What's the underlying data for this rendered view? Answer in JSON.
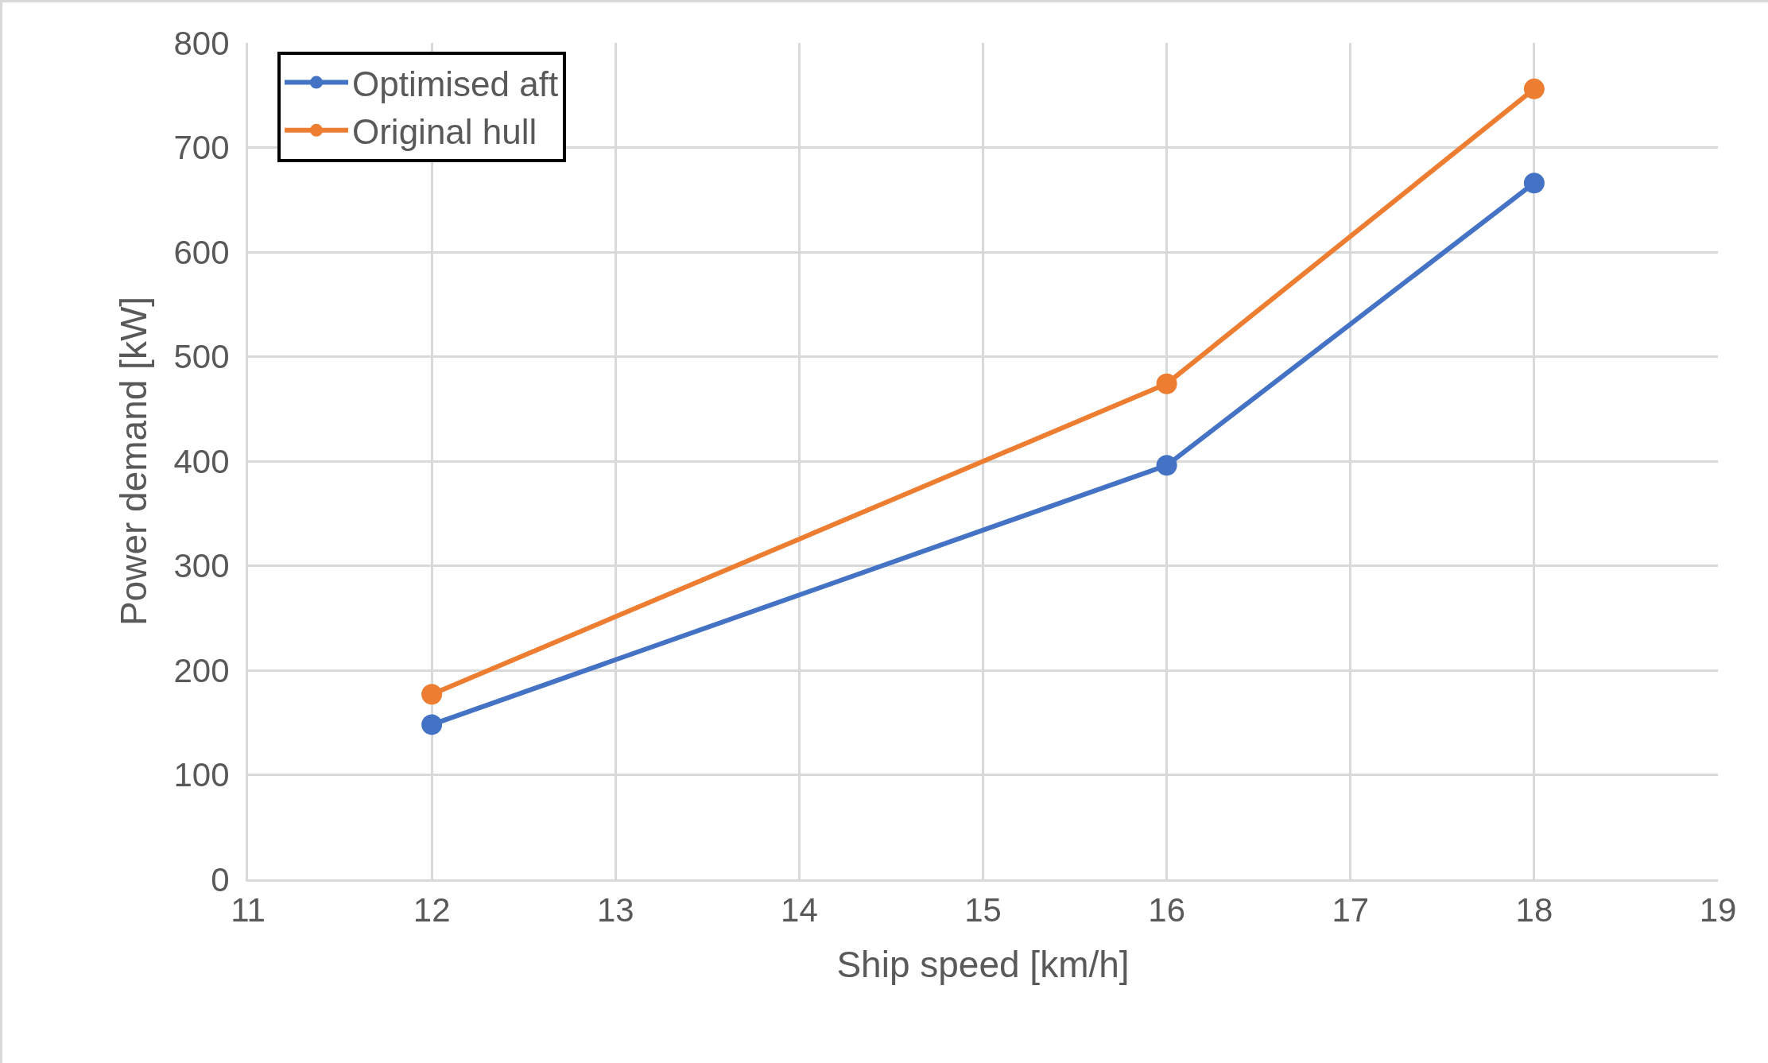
{
  "chart_data": {
    "type": "line",
    "xlabel": "Ship speed [km/h]",
    "ylabel": "Power demand [kW]",
    "x": [
      12,
      16,
      18
    ],
    "series": [
      {
        "name": "Optimised aft",
        "color": "#4472c4",
        "values": [
          148,
          396,
          666
        ]
      },
      {
        "name": "Original hull",
        "color": "#ed7d31",
        "values": [
          177,
          474,
          756
        ]
      }
    ],
    "xlim": [
      11,
      19
    ],
    "xticks": [
      11,
      12,
      13,
      14,
      15,
      16,
      17,
      18,
      19
    ],
    "ylim": [
      0,
      800
    ],
    "yticks": [
      0,
      100,
      200,
      300,
      400,
      500,
      600,
      700,
      800
    ],
    "grid": true,
    "legend": "top left",
    "marker": "circle",
    "line_style": "solid"
  }
}
